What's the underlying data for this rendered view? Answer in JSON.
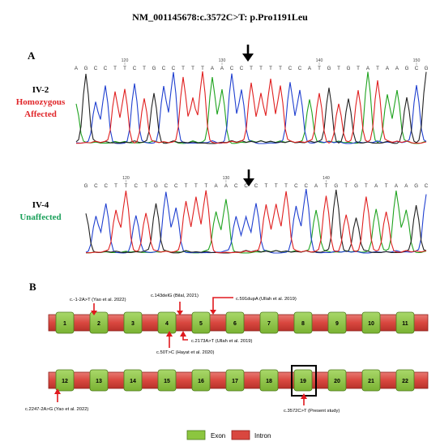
{
  "title": "NM_001145678:c.3572C>T: p.Pro1191Leu",
  "panels": {
    "a_label": "A",
    "b_label": "B"
  },
  "samples": [
    {
      "id": "IV-2",
      "status": "Homozygous Affected",
      "status_line1": "Homozygous",
      "status_line2": "Affected",
      "status_color": "#e0262a",
      "sequence": [
        "A",
        "G",
        "C",
        "C",
        "T",
        "T",
        "C",
        "T",
        "G",
        "C",
        "C",
        "T",
        "T",
        "T",
        "A",
        "A",
        "C",
        "C",
        "T",
        "T",
        "T",
        "T",
        "C",
        "C",
        "A",
        "T",
        "G",
        "T",
        "G",
        "T",
        "A",
        "T",
        "A",
        "A",
        "G",
        "C",
        "G"
      ],
      "tick_labels": [
        "120",
        "130",
        "140",
        "150"
      ]
    },
    {
      "id": "IV-4",
      "status": "Unaffected",
      "status_color": "#1aa05a",
      "sequence": [
        "G",
        "C",
        "C",
        "T",
        "T",
        "C",
        "T",
        "G",
        "C",
        "C",
        "T",
        "T",
        "T",
        "A",
        "A",
        "C",
        "C",
        "C",
        "T",
        "T",
        "T",
        "C",
        "C",
        "A",
        "T",
        "G",
        "T",
        "G",
        "T",
        "A",
        "T",
        "A",
        "A",
        "G",
        "C"
      ],
      "tick_labels": [
        "120",
        "130",
        "140"
      ]
    }
  ],
  "gene_diagram": {
    "row1_exons": [
      "1",
      "2",
      "3",
      "4",
      "5",
      "6",
      "7",
      "8",
      "9",
      "10",
      "11"
    ],
    "row2_exons": [
      "12",
      "13",
      "14",
      "15",
      "16",
      "17",
      "18",
      "19",
      "20",
      "21",
      "22"
    ],
    "highlight_exon": "19",
    "annotations": [
      {
        "text": "c.-1-2A>T (Yao et al. 2022)"
      },
      {
        "text": "c.143delG (Bilal, 2021)"
      },
      {
        "text": "c.591dupA (Ullah et al. 2019)"
      },
      {
        "text": "c.50T>C (Hayat et al. 2020)"
      },
      {
        "text": "c.2173A>T (Ullah et al. 2019)"
      },
      {
        "text": "c.2247-2A>G (Yao et al. 2022)"
      },
      {
        "text": "c.3572C>T (Present study)"
      }
    ],
    "colors": {
      "exon": "#8cc63f",
      "exon_border": "#4d7a1c",
      "intron": "#d9473f",
      "intron_border": "#8e1f1a",
      "arrow": "#e0191e"
    }
  },
  "legend": {
    "exon_label": "Exon",
    "intron_label": "Intron"
  }
}
